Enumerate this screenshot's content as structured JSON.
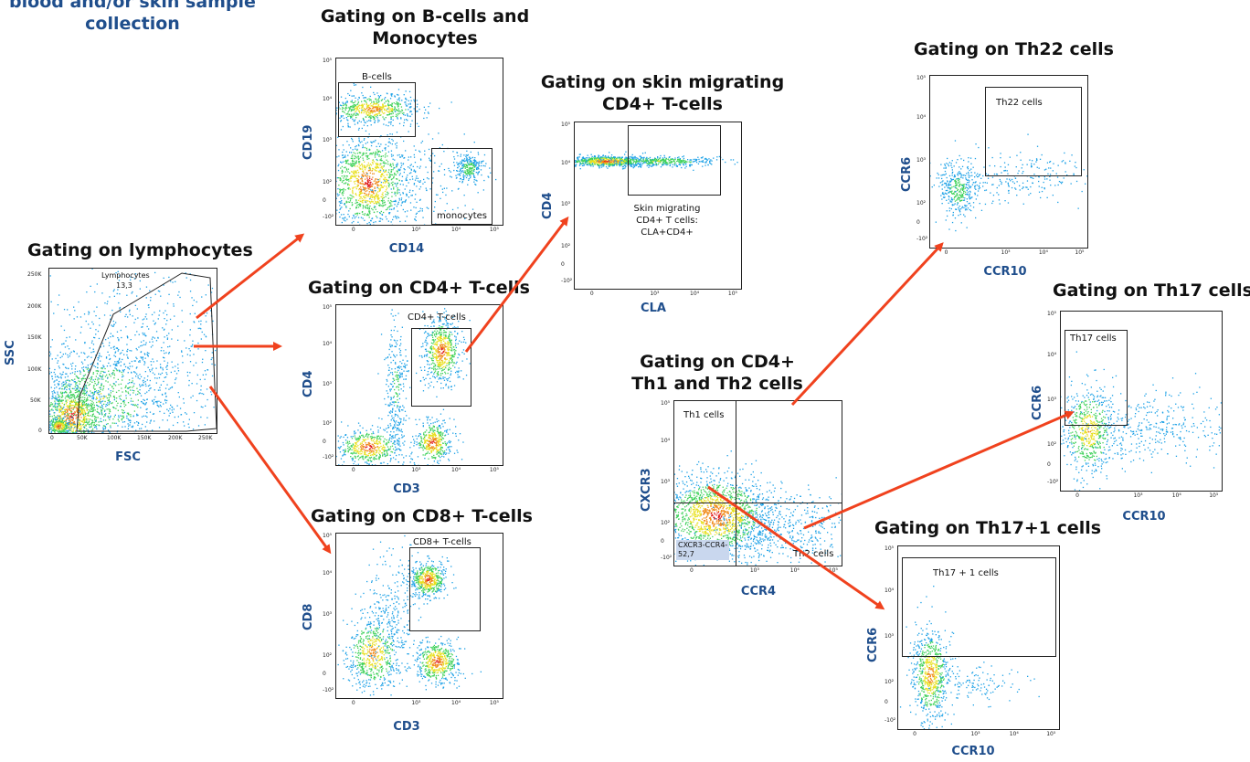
{
  "header": "blood and/or skin sample collection",
  "colors": {
    "arrow": "#f0421e",
    "title": "#111111",
    "axis": "#1f4e8c",
    "gate": "#222222"
  },
  "panels": {
    "lymphocytes": {
      "title": "Gating on lymphocytes",
      "x_label": "FSC",
      "y_label": "SSC",
      "gate_label": "Lymphocytes",
      "gate_value": "13,3",
      "x_ticks": [
        "0",
        "50K",
        "100K",
        "150K",
        "200K",
        "250K"
      ],
      "y_ticks": [
        "250K",
        "200K",
        "150K",
        "100K",
        "50K",
        "0"
      ]
    },
    "bcells": {
      "title": "Gating on B-cells and Monocytes",
      "x_label": "CD14",
      "y_label": "CD19",
      "gate1": "B-cells",
      "gate2": "monocytes"
    },
    "cd4": {
      "title": "Gating on CD4+ T-cells",
      "x_label": "CD3",
      "y_label": "CD4",
      "gate": "CD4+ T-cells"
    },
    "cd8": {
      "title": "Gating on CD8+ T-cells",
      "x_label": "CD3",
      "y_label": "CD8",
      "gate": "CD8+ T-cells"
    },
    "skin": {
      "title": "Gating on skin migrating CD4+ T-cells",
      "x_label": "CLA",
      "y_label": "CD4",
      "note_line1": "Skin migrating",
      "note_line2": "CD4+ T cells:",
      "note_line3": "CLA+CD4+"
    },
    "th1th2": {
      "title": "Gating on CD4+ Th1 and Th2 cells",
      "x_label": "CCR4",
      "y_label": "CXCR3",
      "q1": "Th1 cells",
      "q2": "Th2 cells",
      "q3_line1": "CXCR3-CCR4-",
      "q3_line2": "52,7"
    },
    "th22": {
      "title": "Gating on Th22 cells",
      "x_label": "CCR10",
      "y_label": "CCR6",
      "gate": "Th22 cells"
    },
    "th17": {
      "title": "Gating on Th17 cells",
      "x_label": "CCR10",
      "y_label": "CCR6",
      "gate": "Th17 cells"
    },
    "th17p1": {
      "title": "Gating on Th17+1 cells",
      "x_label": "CCR10",
      "y_label": "CCR6",
      "gate": "Th17 + 1 cells"
    }
  },
  "log_ticks": [
    "10⁵",
    "10⁴",
    "10³",
    "10²",
    "0",
    "-10²"
  ],
  "log_ticks_x": [
    "0",
    "10³",
    "10⁴",
    "10⁵"
  ]
}
